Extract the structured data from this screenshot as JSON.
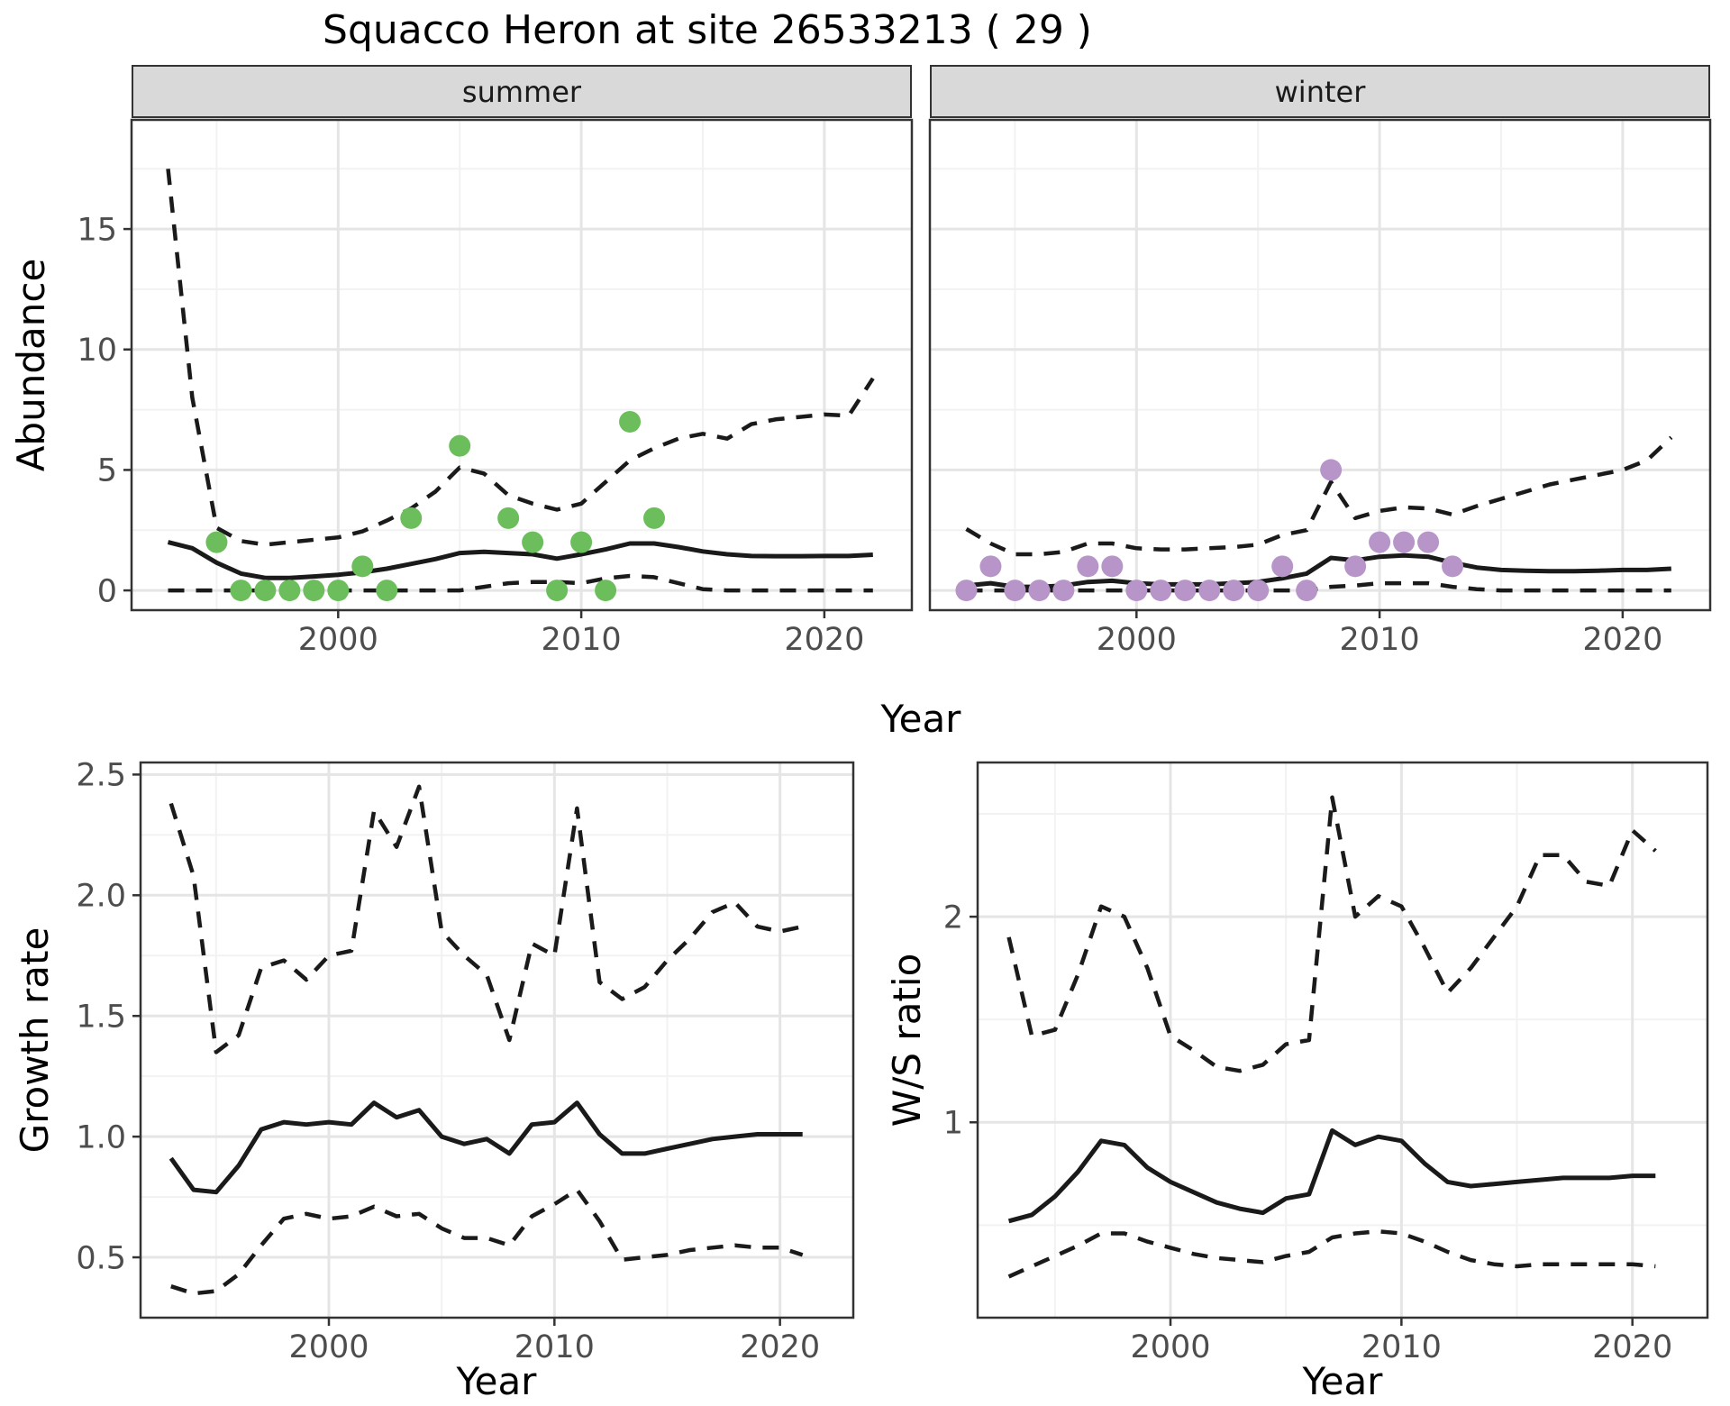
{
  "title": "Squacco Heron at site 26533213 ( 29 )",
  "facets": {
    "summer": "summer",
    "winter": "winter"
  },
  "axis_titles": {
    "abundance": "Abundance",
    "year": "Year",
    "growth_rate": "Growth rate",
    "ws_ratio": "W/S ratio"
  },
  "colors": {
    "summer_points": "#6cbe5c",
    "winter_points": "#b795c8",
    "line": "#1a1a1a",
    "panel_border": "#333333",
    "grid_major": "#e5e5e5",
    "grid_minor": "#f2f2f2",
    "tick_text": "#4d4d4d",
    "tick_mark": "#333333",
    "background": "#ffffff"
  },
  "chart_data": [
    {
      "key": "abundance-summer",
      "type": "line",
      "facet": "summer",
      "xlabel": "Year",
      "ylabel": "Abundance",
      "xlim": [
        1991.5,
        2023.6
      ],
      "ylim": [
        -0.82,
        19.53
      ],
      "grid": "on",
      "x_ticks": {
        "values": [
          2000,
          2010,
          2020
        ],
        "labels": [
          "2000",
          "2010",
          "2020"
        ]
      },
      "y_ticks": {
        "values": [
          0,
          5,
          10,
          15
        ],
        "labels": [
          "0",
          "5",
          "10",
          "15"
        ]
      },
      "x_minor": [
        1995,
        2005,
        2015
      ],
      "y_minor": [
        2.5,
        7.5,
        12.5,
        17.5
      ],
      "years": [
        1993,
        1994,
        1995,
        1996,
        1997,
        1998,
        1999,
        2000,
        2001,
        2002,
        2003,
        2004,
        2005,
        2006,
        2007,
        2008,
        2009,
        2010,
        2011,
        2012,
        2013,
        2014,
        2015,
        2016,
        2017,
        2018,
        2019,
        2020,
        2021,
        2022
      ],
      "series": [
        {
          "name": "upper-ci",
          "style": "dashed",
          "y": [
            17.5,
            8.0,
            2.6,
            2.05,
            1.9,
            2.0,
            2.1,
            2.2,
            2.45,
            2.9,
            3.4,
            4.1,
            5.1,
            4.85,
            3.95,
            3.6,
            3.35,
            3.6,
            4.5,
            5.4,
            5.9,
            6.3,
            6.5,
            6.3,
            6.9,
            7.1,
            7.2,
            7.3,
            7.25,
            8.8
          ]
        },
        {
          "name": "lower-ci",
          "style": "dashed",
          "y": [
            0,
            0,
            0,
            0,
            0,
            0,
            0,
            0,
            0,
            0,
            0,
            0,
            0,
            0.15,
            0.3,
            0.35,
            0.35,
            0.3,
            0.5,
            0.6,
            0.55,
            0.3,
            0.05,
            0,
            0,
            0,
            0,
            0,
            0,
            0
          ]
        },
        {
          "name": "median",
          "style": "solid",
          "y": [
            2.0,
            1.75,
            1.15,
            0.7,
            0.52,
            0.52,
            0.58,
            0.65,
            0.75,
            0.9,
            1.1,
            1.3,
            1.55,
            1.6,
            1.55,
            1.5,
            1.32,
            1.5,
            1.7,
            1.95,
            1.95,
            1.8,
            1.62,
            1.5,
            1.43,
            1.42,
            1.42,
            1.43,
            1.43,
            1.48
          ]
        },
        {
          "name": "observed-counts",
          "style": "points",
          "color": "#6cbe5c",
          "x": [
            1995,
            1996,
            1997,
            1998,
            1999,
            2000,
            2001,
            2002,
            2003,
            2005,
            2007,
            2008,
            2009,
            2010,
            2011,
            2012,
            2013
          ],
          "y": [
            2,
            0,
            0,
            0,
            0,
            0,
            1,
            0,
            3,
            6,
            3,
            2,
            0,
            2,
            0,
            7,
            3
          ]
        }
      ]
    },
    {
      "key": "abundance-winter",
      "type": "line",
      "facet": "winter",
      "xlabel": "Year",
      "ylabel": "Abundance",
      "xlim": [
        1991.5,
        2023.6
      ],
      "ylim": [
        -0.82,
        19.53
      ],
      "grid": "on",
      "x_ticks": {
        "values": [
          2000,
          2010,
          2020
        ],
        "labels": [
          "2000",
          "2010",
          "2020"
        ]
      },
      "y_ticks": {
        "values": [
          0,
          5,
          10,
          15
        ],
        "labels": []
      },
      "x_minor": [
        1995,
        2005,
        2015
      ],
      "y_minor": [
        2.5,
        7.5,
        12.5,
        17.5
      ],
      "years": [
        1993,
        1994,
        1995,
        1996,
        1997,
        1998,
        1999,
        2000,
        2001,
        2002,
        2003,
        2004,
        2005,
        2006,
        2007,
        2008,
        2009,
        2010,
        2011,
        2012,
        2013,
        2014,
        2015,
        2016,
        2017,
        2018,
        2019,
        2020,
        2021,
        2022
      ],
      "series": [
        {
          "name": "upper-ci",
          "style": "dashed",
          "y": [
            2.55,
            1.95,
            1.5,
            1.5,
            1.6,
            1.95,
            1.95,
            1.75,
            1.7,
            1.7,
            1.75,
            1.8,
            1.9,
            2.3,
            2.5,
            4.5,
            3.0,
            3.3,
            3.45,
            3.4,
            3.15,
            3.5,
            3.8,
            4.1,
            4.4,
            4.6,
            4.8,
            5.0,
            5.4,
            6.35
          ]
        },
        {
          "name": "lower-ci",
          "style": "dashed",
          "y": [
            0,
            0,
            0,
            0,
            0,
            0,
            0,
            0,
            0,
            0,
            0,
            0,
            0,
            0,
            0,
            0.15,
            0.2,
            0.3,
            0.3,
            0.3,
            0.15,
            0.05,
            0,
            0,
            0,
            0,
            0,
            0,
            0,
            0
          ]
        },
        {
          "name": "median",
          "style": "solid",
          "y": [
            0.2,
            0.3,
            0.15,
            0.15,
            0.2,
            0.35,
            0.4,
            0.3,
            0.25,
            0.25,
            0.25,
            0.3,
            0.35,
            0.5,
            0.7,
            1.35,
            1.25,
            1.4,
            1.45,
            1.4,
            1.15,
            0.95,
            0.85,
            0.82,
            0.8,
            0.8,
            0.82,
            0.85,
            0.85,
            0.9
          ]
        },
        {
          "name": "observed-counts",
          "style": "points",
          "color": "#b795c8",
          "x": [
            1993,
            1994,
            1995,
            1996,
            1997,
            1998,
            1999,
            2000,
            2001,
            2002,
            2003,
            2004,
            2005,
            2006,
            2007,
            2008,
            2009,
            2010,
            2011,
            2012,
            2013
          ],
          "y": [
            0,
            1,
            0,
            0,
            0,
            1,
            1,
            0,
            0,
            0,
            0,
            0,
            0,
            1,
            0,
            5,
            1,
            2,
            2,
            2,
            1
          ]
        }
      ]
    },
    {
      "key": "growth-rate",
      "type": "line",
      "facet": "",
      "xlabel": "Year",
      "ylabel": "Growth rate",
      "xlim": [
        1991.65,
        2023.25
      ],
      "ylim": [
        0.25,
        2.55
      ],
      "grid": "on",
      "x_ticks": {
        "values": [
          2000,
          2010,
          2020
        ],
        "labels": [
          "2000",
          "2010",
          "2020"
        ]
      },
      "y_ticks": {
        "values": [
          0.5,
          1.0,
          1.5,
          2.0,
          2.5
        ],
        "labels": [
          "0.5",
          "1.0",
          "1.5",
          "2.0",
          "2.5"
        ]
      },
      "x_minor": [
        1995,
        2005,
        2015
      ],
      "y_minor": [
        0.75,
        1.25,
        1.75,
        2.25
      ],
      "years": [
        1993,
        1994,
        1995,
        1996,
        1997,
        1998,
        1999,
        2000,
        2001,
        2002,
        2003,
        2004,
        2005,
        2006,
        2007,
        2008,
        2009,
        2010,
        2011,
        2012,
        2013,
        2014,
        2015,
        2016,
        2017,
        2018,
        2019,
        2020,
        2021
      ],
      "series": [
        {
          "name": "upper-ci",
          "style": "dashed",
          "y": [
            2.38,
            2.08,
            1.35,
            1.42,
            1.7,
            1.73,
            1.65,
            1.75,
            1.77,
            2.35,
            2.2,
            2.45,
            1.85,
            1.75,
            1.67,
            1.4,
            1.8,
            1.75,
            2.36,
            1.64,
            1.57,
            1.62,
            1.73,
            1.82,
            1.93,
            1.97,
            1.87,
            1.85,
            1.87
          ]
        },
        {
          "name": "lower-ci",
          "style": "dashed",
          "y": [
            0.38,
            0.35,
            0.36,
            0.43,
            0.55,
            0.66,
            0.68,
            0.66,
            0.67,
            0.71,
            0.67,
            0.68,
            0.62,
            0.58,
            0.58,
            0.55,
            0.67,
            0.72,
            0.78,
            0.65,
            0.49,
            0.5,
            0.51,
            0.53,
            0.54,
            0.55,
            0.54,
            0.54,
            0.51
          ]
        },
        {
          "name": "median",
          "style": "solid",
          "y": [
            0.91,
            0.78,
            0.77,
            0.88,
            1.03,
            1.06,
            1.05,
            1.06,
            1.05,
            1.14,
            1.08,
            1.11,
            1.0,
            0.97,
            0.99,
            0.93,
            1.05,
            1.06,
            1.14,
            1.01,
            0.93,
            0.93,
            0.95,
            0.97,
            0.99,
            1.0,
            1.01,
            1.01,
            1.01
          ]
        }
      ]
    },
    {
      "key": "ws-ratio",
      "type": "line",
      "facet": "",
      "xlabel": "Year",
      "ylabel": "W/S ratio",
      "xlim": [
        1991.65,
        2023.25
      ],
      "ylim": [
        0.05,
        2.75
      ],
      "grid": "on",
      "x_ticks": {
        "values": [
          2000,
          2010,
          2020
        ],
        "labels": [
          "2000",
          "2010",
          "2020"
        ]
      },
      "y_ticks": {
        "values": [
          1,
          2
        ],
        "labels": [
          "1",
          "2"
        ]
      },
      "x_minor": [
        1995,
        2005,
        2015
      ],
      "y_minor": [
        0.5,
        1.5,
        2.5
      ],
      "years": [
        1993,
        1994,
        1995,
        1996,
        1997,
        1998,
        1999,
        2000,
        2001,
        2002,
        2003,
        2004,
        2005,
        2006,
        2007,
        2008,
        2009,
        2010,
        2011,
        2012,
        2013,
        2014,
        2015,
        2016,
        2017,
        2018,
        2019,
        2020,
        2021
      ],
      "series": [
        {
          "name": "upper-ci",
          "style": "dashed",
          "y": [
            1.9,
            1.42,
            1.45,
            1.72,
            2.05,
            2.0,
            1.75,
            1.42,
            1.35,
            1.27,
            1.25,
            1.28,
            1.38,
            1.4,
            2.58,
            2.0,
            2.1,
            2.05,
            1.85,
            1.63,
            1.75,
            1.9,
            2.05,
            2.3,
            2.3,
            2.17,
            2.15,
            2.42,
            2.32
          ]
        },
        {
          "name": "lower-ci",
          "style": "dashed",
          "y": [
            0.25,
            0.3,
            0.35,
            0.4,
            0.46,
            0.46,
            0.42,
            0.39,
            0.36,
            0.34,
            0.33,
            0.32,
            0.35,
            0.37,
            0.44,
            0.46,
            0.47,
            0.46,
            0.42,
            0.37,
            0.33,
            0.31,
            0.3,
            0.31,
            0.31,
            0.31,
            0.31,
            0.31,
            0.3
          ]
        },
        {
          "name": "median",
          "style": "solid",
          "y": [
            0.52,
            0.55,
            0.64,
            0.76,
            0.91,
            0.89,
            0.78,
            0.71,
            0.66,
            0.61,
            0.58,
            0.56,
            0.63,
            0.65,
            0.96,
            0.89,
            0.93,
            0.91,
            0.8,
            0.71,
            0.69,
            0.7,
            0.71,
            0.72,
            0.73,
            0.73,
            0.73,
            0.74,
            0.74
          ]
        }
      ]
    }
  ]
}
